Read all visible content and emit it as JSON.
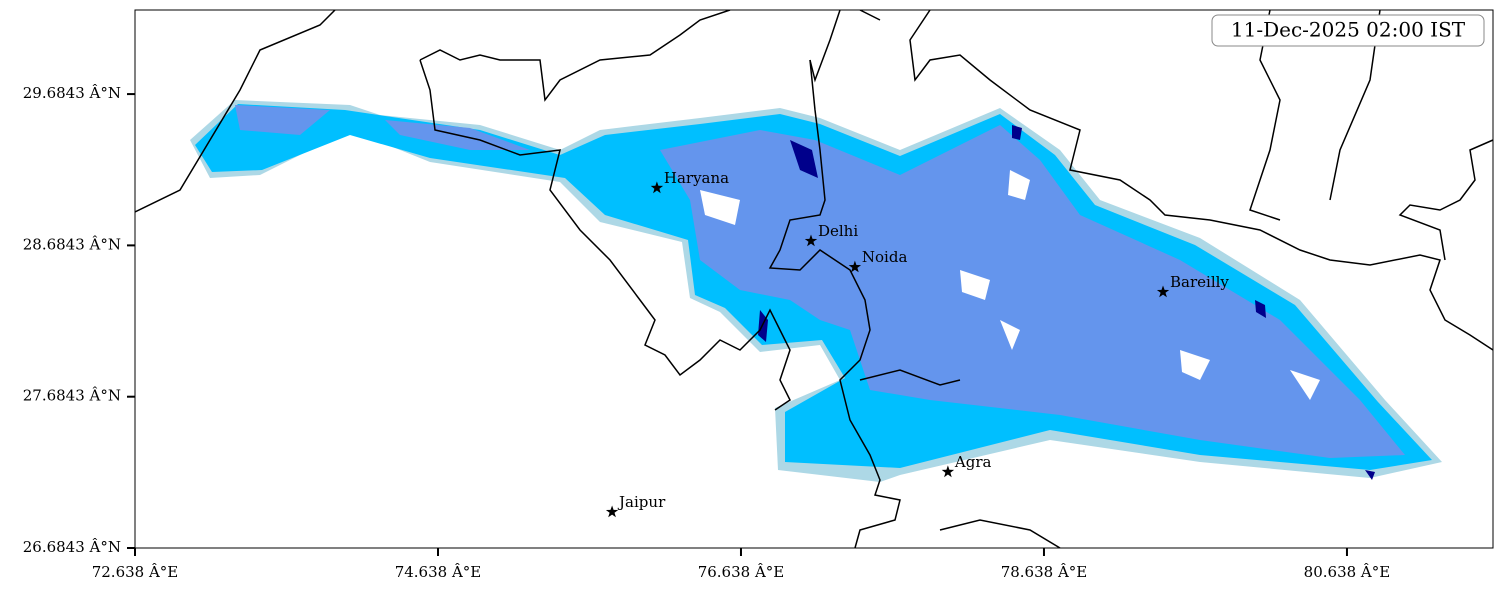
{
  "map": {
    "title": "11-Dec-2025 02:00 IST",
    "xlim": [
      72.638,
      81.602
    ],
    "ylim": [
      26.6843,
      30.24
    ],
    "xticks": [
      {
        "value": 72.638,
        "label": "72.638 Â°E"
      },
      {
        "value": 74.638,
        "label": "74.638 Â°E"
      },
      {
        "value": 76.638,
        "label": "76.638 Â°E"
      },
      {
        "value": 78.638,
        "label": "78.638 Â°E"
      },
      {
        "value": 80.638,
        "label": "80.638 Â°E"
      }
    ],
    "yticks": [
      {
        "value": 26.6843,
        "label": "26.6843 Â°N"
      },
      {
        "value": 27.6843,
        "label": "27.6843 Â°N"
      },
      {
        "value": 28.6843,
        "label": "28.6843 Â°N"
      },
      {
        "value": 29.6843,
        "label": "29.6843 Â°N"
      }
    ],
    "cities": [
      {
        "name": "Haryana",
        "lon": 76.083,
        "lat": 29.064
      },
      {
        "name": "Delhi",
        "lon": 77.1,
        "lat": 28.713
      },
      {
        "name": "Noida",
        "lon": 77.39,
        "lat": 28.541
      },
      {
        "name": "Bareilly",
        "lon": 79.424,
        "lat": 28.376
      },
      {
        "name": "Agra",
        "lon": 78.004,
        "lat": 27.187
      },
      {
        "name": "Jaipur",
        "lon": 75.787,
        "lat": 26.922
      }
    ]
  }
}
